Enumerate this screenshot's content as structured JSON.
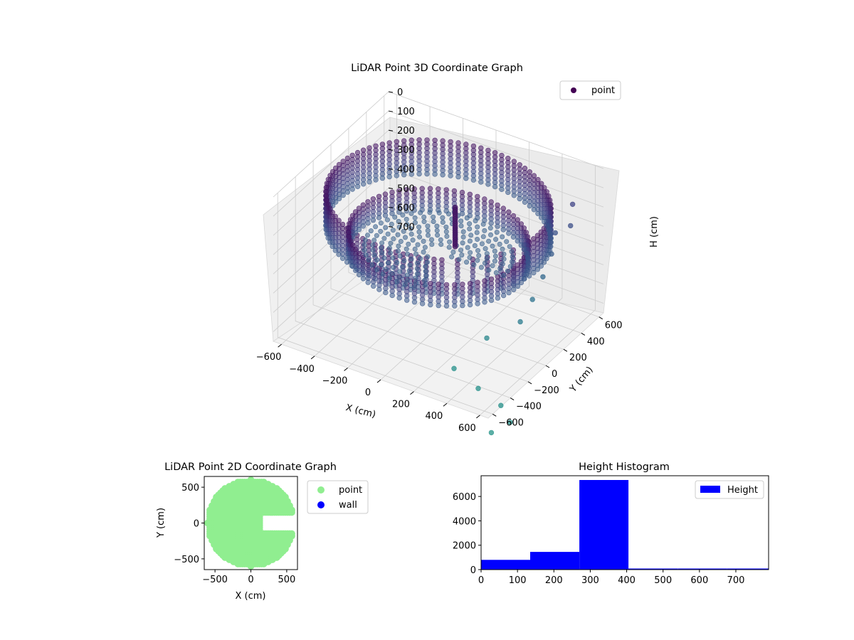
{
  "chart_data": [
    {
      "type": "scatter3d",
      "title": "LiDAR Point 3D Coordinate Graph",
      "xlabel": "X (cm)",
      "ylabel": "Y (cm)",
      "zlabel": "H (cm)",
      "x_ticks": [
        "−600",
        "−400",
        "−200",
        "0",
        "200",
        "400",
        "600"
      ],
      "y_ticks": [
        "−600",
        "−400",
        "−200",
        "0",
        "200",
        "400",
        "600"
      ],
      "z_ticks": [
        "0",
        "100",
        "200",
        "300",
        "400",
        "500",
        "600",
        "700"
      ],
      "xlim": [
        -650,
        650
      ],
      "ylim": [
        -650,
        650
      ],
      "zlim": [
        0,
        750
      ],
      "z_inverted": true,
      "grid": true,
      "colormap": "viridis",
      "legend": {
        "entries": [
          "point"
        ],
        "placement": "top-right",
        "marker_color": "#440154"
      },
      "series": [
        {
          "name": "point",
          "rings": [
            {
              "radius": 600,
              "z_top": 90,
              "z_bottom": 280,
              "center": [
                0,
                0
              ]
            },
            {
              "radius": 480,
              "z_top": 280,
              "z_bottom": 400,
              "center": [
                0,
                0
              ]
            }
          ],
          "pole": {
            "x": 80,
            "y": 40,
            "z_top": 120,
            "z_bottom": 330
          },
          "outliers": [
            {
              "x": 640,
              "y": 320,
              "z": 50
            },
            {
              "x": 660,
              "y": 260,
              "z": 130
            },
            {
              "x": 600,
              "y": 200,
              "z": 160
            },
            {
              "x": 620,
              "y": 120,
              "z": 230
            },
            {
              "x": 600,
              "y": 60,
              "z": 330
            },
            {
              "x": 580,
              "y": -20,
              "z": 420
            },
            {
              "x": 560,
              "y": -120,
              "z": 500
            },
            {
              "x": 400,
              "y": -200,
              "z": 600
            },
            {
              "x": 320,
              "y": -420,
              "z": 690
            },
            {
              "x": 520,
              "y": -520,
              "z": 690
            },
            {
              "x": 700,
              "y": -600,
              "z": 690
            },
            {
              "x": 820,
              "y": -720,
              "z": 690
            },
            {
              "x": 760,
              "y": -820,
              "z": 720
            }
          ]
        }
      ]
    },
    {
      "type": "scatter",
      "title": "LiDAR Point 2D Coordinate Graph",
      "xlabel": "X (cm)",
      "ylabel": "Y (cm)",
      "x_ticks": [
        "−500",
        "0",
        "500"
      ],
      "y_ticks": [
        "−500",
        "0",
        "500"
      ],
      "xlim": [
        -650,
        650
      ],
      "ylim": [
        -650,
        650
      ],
      "legend": {
        "placement": "outside-right"
      },
      "series": [
        {
          "name": "point",
          "color": "#90ee90",
          "disc_radius": 600,
          "notch": {
            "from_x": 130,
            "half_width": 130
          }
        },
        {
          "name": "wall",
          "color": "#0000ff"
        }
      ]
    },
    {
      "type": "histogram",
      "title": "Height Histogram",
      "xlabel": "",
      "ylabel": "",
      "color": "#0000ff",
      "bin_edges": [
        0,
        135,
        270,
        405,
        540,
        675,
        790
      ],
      "counts": [
        800,
        1450,
        7350,
        20,
        15,
        15
      ],
      "x_ticks": [
        "0",
        "100",
        "200",
        "300",
        "400",
        "500",
        "600",
        "700"
      ],
      "y_ticks": [
        "0",
        "2000",
        "4000",
        "6000"
      ],
      "xlim": [
        0,
        790
      ],
      "ylim": [
        0,
        7700
      ],
      "legend": {
        "entries": [
          "Height"
        ],
        "placement": "top-right"
      },
      "series": [
        {
          "name": "Height"
        }
      ]
    }
  ]
}
